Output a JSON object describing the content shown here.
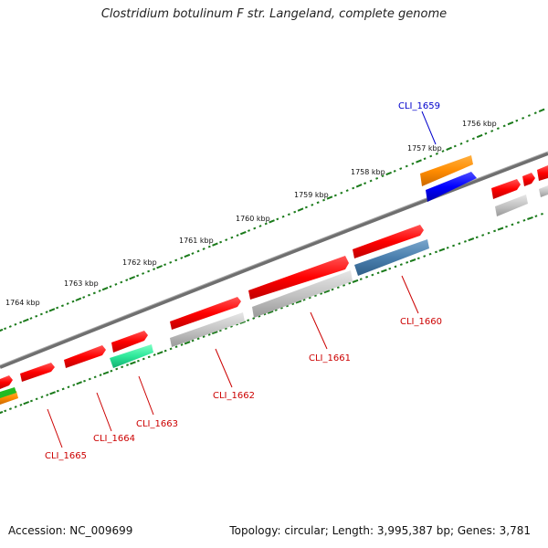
{
  "header": {
    "title": "Clostridium botulinum F str. Langeland, complete genome"
  },
  "footer": {
    "accession": "Accession: NC_009699",
    "topology": "Topology: circular; Length: 3,995,387 bp; Genes: 3,781"
  },
  "scale": {
    "ticks": [
      "1756 kbp",
      "1757 kbp",
      "1758 kbp",
      "1759 kbp",
      "1760 kbp",
      "1761 kbp",
      "1762 kbp",
      "1763 kbp",
      "1764 kbp"
    ]
  },
  "colors": {
    "backbone": "#777777",
    "tick_track": "#1a7a1a",
    "forward_gene": "#ff0000",
    "reverse_gene": "#b0b0b0",
    "highlight_gene": "#0000ff",
    "label_red": "#cc0000",
    "label_blue": "#0000cc"
  },
  "genes": [
    {
      "name": "CLI_1659",
      "label_color": "#0000cc"
    },
    {
      "name": "CLI_1660",
      "label_color": "#cc0000"
    },
    {
      "name": "CLI_1661",
      "label_color": "#cc0000"
    },
    {
      "name": "CLI_1662",
      "label_color": "#cc0000"
    },
    {
      "name": "CLI_1663",
      "label_color": "#cc0000"
    },
    {
      "name": "CLI_1664",
      "label_color": "#cc0000"
    },
    {
      "name": "CLI_1665",
      "label_color": "#cc0000"
    }
  ]
}
